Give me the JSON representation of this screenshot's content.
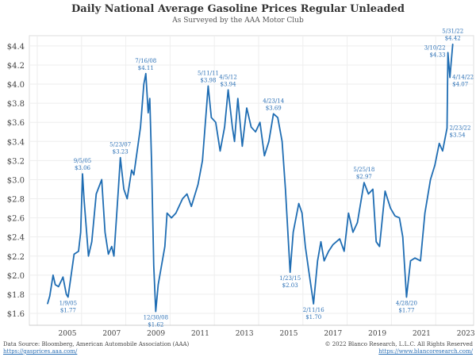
{
  "chart_data": {
    "type": "line",
    "title": "Daily National Average Gasoline Prices Regular Unleaded",
    "subtitle": "As Surveyed by the AAA Motor Club",
    "xlabel": "",
    "ylabel": "",
    "xlim": [
      2003.3,
      2023.3
    ],
    "ylim": [
      1.5,
      4.55
    ],
    "grid": true,
    "x_ticks": [
      2005,
      2007,
      2009,
      2011,
      2013,
      2015,
      2017,
      2019,
      2021,
      2023
    ],
    "x_tick_labels": [
      "2005",
      "2007",
      "2009",
      "2011",
      "2013",
      "2015",
      "2017",
      "2019",
      "2021",
      "2023"
    ],
    "y_ticks": [
      1.6,
      1.8,
      2.0,
      2.2,
      2.4,
      2.6,
      2.8,
      3.0,
      3.2,
      3.4,
      3.6,
      3.8,
      4.0,
      4.2,
      4.4
    ],
    "y_tick_labels": [
      "$1.6",
      "$1.8",
      "$2.0",
      "$2.2",
      "$2.4",
      "$2.6",
      "$2.8",
      "$3.0",
      "$3.2",
      "$3.4",
      "$3.6",
      "$3.8",
      "$4.0",
      "$4.2",
      "$4.4"
    ],
    "line_color": "#1f6db3",
    "series": [
      {
        "name": "Regular Unleaded",
        "x": [
          2004.1,
          2004.2,
          2004.35,
          2004.45,
          2004.6,
          2004.8,
          2004.95,
          2005.03,
          2005.3,
          2005.5,
          2005.6,
          2005.68,
          2005.75,
          2005.85,
          2005.95,
          2006.1,
          2006.3,
          2006.55,
          2006.7,
          2006.85,
          2007.0,
          2007.1,
          2007.3,
          2007.39,
          2007.55,
          2007.7,
          2007.9,
          2008.0,
          2008.3,
          2008.45,
          2008.54,
          2008.65,
          2008.72,
          2008.8,
          2008.9,
          2008.99,
          2009.1,
          2009.4,
          2009.5,
          2009.7,
          2009.9,
          2010.2,
          2010.4,
          2010.6,
          2010.9,
          2011.1,
          2011.36,
          2011.5,
          2011.7,
          2011.9,
          2012.1,
          2012.26,
          2012.45,
          2012.55,
          2012.7,
          2012.9,
          2013.1,
          2013.3,
          2013.5,
          2013.7,
          2013.9,
          2014.1,
          2014.31,
          2014.5,
          2014.7,
          2014.85,
          2015.06,
          2015.2,
          2015.45,
          2015.6,
          2015.75,
          2015.9,
          2016.12,
          2016.3,
          2016.45,
          2016.6,
          2016.8,
          2017.0,
          2017.3,
          2017.5,
          2017.7,
          2017.9,
          2018.1,
          2018.4,
          2018.6,
          2018.8,
          2018.95,
          2019.1,
          2019.35,
          2019.6,
          2019.8,
          2020.0,
          2020.15,
          2020.32,
          2020.5,
          2020.7,
          2020.95,
          2021.15,
          2021.4,
          2021.6,
          2021.8,
          2021.95,
          2022.15,
          2022.19,
          2022.28,
          2022.41
        ],
        "values": [
          1.7,
          1.78,
          2.0,
          1.9,
          1.88,
          1.98,
          1.8,
          1.77,
          2.22,
          2.25,
          2.45,
          3.06,
          2.8,
          2.5,
          2.2,
          2.35,
          2.85,
          3.0,
          2.45,
          2.22,
          2.3,
          2.2,
          2.9,
          3.23,
          2.9,
          2.8,
          3.1,
          3.05,
          3.55,
          4.0,
          4.11,
          3.7,
          3.85,
          3.2,
          2.1,
          1.62,
          1.9,
          2.3,
          2.65,
          2.6,
          2.65,
          2.8,
          2.85,
          2.72,
          2.95,
          3.2,
          3.98,
          3.65,
          3.6,
          3.3,
          3.55,
          3.94,
          3.55,
          3.4,
          3.85,
          3.35,
          3.75,
          3.55,
          3.5,
          3.6,
          3.25,
          3.4,
          3.69,
          3.65,
          3.4,
          2.9,
          2.03,
          2.45,
          2.75,
          2.65,
          2.3,
          2.05,
          1.7,
          2.15,
          2.35,
          2.15,
          2.25,
          2.32,
          2.38,
          2.25,
          2.65,
          2.45,
          2.55,
          2.97,
          2.85,
          2.9,
          2.35,
          2.3,
          2.88,
          2.7,
          2.62,
          2.6,
          2.4,
          1.77,
          2.15,
          2.18,
          2.15,
          2.65,
          3.0,
          3.15,
          3.38,
          3.3,
          3.54,
          4.33,
          4.07,
          4.42
        ]
      }
    ],
    "annotations": [
      {
        "date": "1/9/05",
        "price": "$1.77",
        "x": 2005.03,
        "y": 1.77,
        "pos": "below"
      },
      {
        "date": "9/5/05",
        "price": "$3.06",
        "x": 2005.68,
        "y": 3.06,
        "pos": "above"
      },
      {
        "date": "5/23/07",
        "price": "$3.23",
        "x": 2007.39,
        "y": 3.23,
        "pos": "above"
      },
      {
        "date": "7/16/08",
        "price": "$4.11",
        "x": 2008.54,
        "y": 4.11,
        "pos": "above"
      },
      {
        "date": "12/30/08",
        "price": "$1.62",
        "x": 2008.99,
        "y": 1.62,
        "pos": "below"
      },
      {
        "date": "5/11/11",
        "price": "$3.98",
        "x": 2011.36,
        "y": 3.98,
        "pos": "above"
      },
      {
        "date": "4/5/12",
        "price": "$3.94",
        "x": 2012.26,
        "y": 3.94,
        "pos": "above"
      },
      {
        "date": "4/23/14",
        "price": "$3.69",
        "x": 2014.31,
        "y": 3.69,
        "pos": "above"
      },
      {
        "date": "1/23/15",
        "price": "$2.03",
        "x": 2015.06,
        "y": 2.03,
        "pos": "below"
      },
      {
        "date": "2/11/16",
        "price": "$1.70",
        "x": 2016.12,
        "y": 1.7,
        "pos": "below"
      },
      {
        "date": "5/25/18",
        "price": "$2.97",
        "x": 2018.4,
        "y": 2.97,
        "pos": "above"
      },
      {
        "date": "4/28/20",
        "price": "$1.77",
        "x": 2020.32,
        "y": 1.77,
        "pos": "below"
      },
      {
        "date": "2/23/22",
        "price": "$3.54",
        "x": 2022.15,
        "y": 3.54,
        "pos": "right"
      },
      {
        "date": "3/10/22",
        "price": "$4.33",
        "x": 2022.19,
        "y": 4.33,
        "pos": "left"
      },
      {
        "date": "4/14/22",
        "price": "$4.07",
        "x": 2022.28,
        "y": 4.07,
        "pos": "right"
      },
      {
        "date": "5/31/22",
        "price": "$4.42",
        "x": 2022.41,
        "y": 4.42,
        "pos": "above"
      }
    ]
  },
  "footer": {
    "source": "Data Source: Bloomberg, American Automobile Association (AAA)",
    "source_link": "https://gasprices.aaa.com/",
    "copyright": "© 2022 Blanco Research, L.L.C. All Rights Reserved",
    "copyright_link": "https://www.blancoresearch.com/"
  }
}
